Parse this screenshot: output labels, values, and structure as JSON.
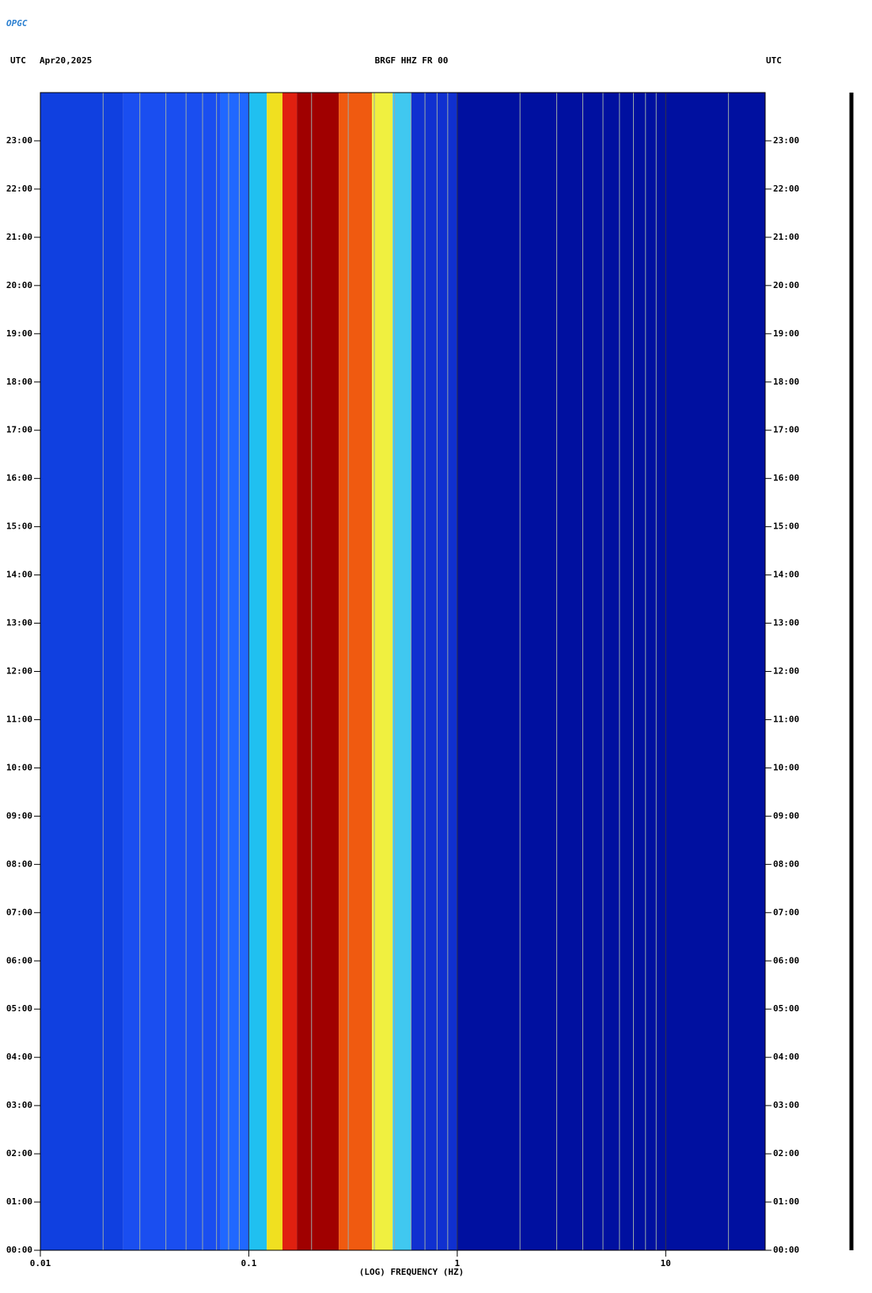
{
  "chart_data": {
    "type": "spectrogram",
    "logo": "OPGC",
    "left_label": "UTC",
    "date": "Apr20,2025",
    "title": "BRGF HHZ FR 00",
    "right_label": "UTC",
    "xlabel": "(LOG) FREQUENCY (HZ)",
    "xscale": "log",
    "xlim": [
      0.01,
      30
    ],
    "xticks": [
      0.01,
      0.1,
      1,
      10
    ],
    "xminorticks": [
      0.02,
      0.03,
      0.04,
      0.05,
      0.06,
      0.07,
      0.08,
      0.09,
      0.2,
      0.3,
      0.4,
      0.5,
      0.6,
      0.7,
      0.8,
      0.9,
      2,
      3,
      4,
      5,
      6,
      7,
      8,
      9,
      20
    ],
    "ylim": [
      0,
      24
    ],
    "yticks": [
      {
        "value": 0,
        "label": "00:00"
      },
      {
        "value": 1,
        "label": "01:00"
      },
      {
        "value": 2,
        "label": "02:00"
      },
      {
        "value": 3,
        "label": "03:00"
      },
      {
        "value": 4,
        "label": "04:00"
      },
      {
        "value": 5,
        "label": "05:00"
      },
      {
        "value": 6,
        "label": "06:00"
      },
      {
        "value": 7,
        "label": "07:00"
      },
      {
        "value": 8,
        "label": "08:00"
      },
      {
        "value": 9,
        "label": "09:00"
      },
      {
        "value": 10,
        "label": "10:00"
      },
      {
        "value": 11,
        "label": "11:00"
      },
      {
        "value": 12,
        "label": "12:00"
      },
      {
        "value": 13,
        "label": "13:00"
      },
      {
        "value": 14,
        "label": "14:00"
      },
      {
        "value": 15,
        "label": "15:00"
      },
      {
        "value": 16,
        "label": "16:00"
      },
      {
        "value": 17,
        "label": "17:00"
      },
      {
        "value": 18,
        "label": "18:00"
      },
      {
        "value": 19,
        "label": "19:00"
      },
      {
        "value": 20,
        "label": "20:00"
      },
      {
        "value": 21,
        "label": "21:00"
      },
      {
        "value": 22,
        "label": "22:00"
      },
      {
        "value": 23,
        "label": "23:00"
      }
    ],
    "band_edges": [
      0.01,
      0.025,
      0.073,
      0.1,
      0.122,
      0.145,
      0.17,
      0.27,
      0.39,
      0.49,
      0.6,
      1,
      30
    ],
    "band_colors": [
      "#1040e0",
      "#1a4ef0",
      "#2068ff",
      "#20c0f0",
      "#f0e020",
      "#e02010",
      "#a00000",
      "#f05a10",
      "#f0f040",
      "#40c8f0",
      "#1030d0",
      "#0010a0"
    ]
  }
}
